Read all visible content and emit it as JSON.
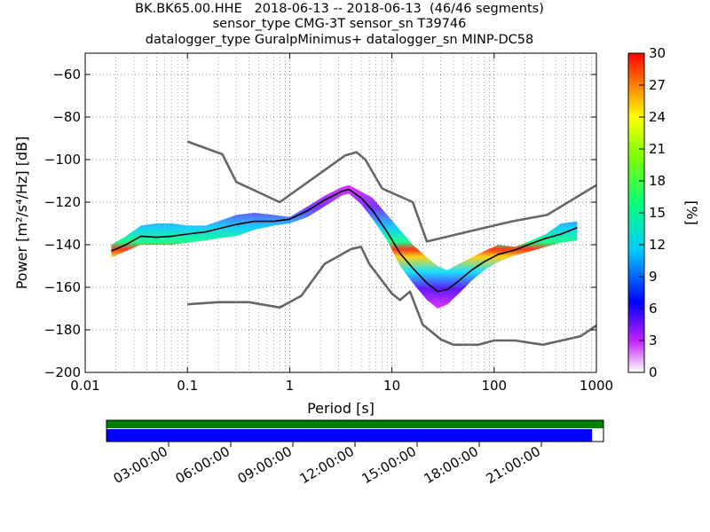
{
  "header": {
    "line1": "BK.BK65.00.HHE   2018-06-13 -- 2018-06-13  (46/46 segments)",
    "line2": "sensor_type CMG-3T sensor_sn T39746",
    "line3": "datalogger_type GuralpMinimus+ datalogger_sn MINP-DC58"
  },
  "chart_data": {
    "type": "heatmap",
    "xlabel": "Period [s]",
    "ylabel": "Power [m²/s⁴/Hz] [dB]",
    "x_scale": "log",
    "xlim": [
      0.01,
      1000
    ],
    "ylim": [
      -200,
      -50
    ],
    "x_ticks": [
      "0.01",
      "0.1",
      "1",
      "10",
      "100",
      "1000"
    ],
    "y_ticks": [
      "−60",
      "−80",
      "−100",
      "−120",
      "−140",
      "−160",
      "−180",
      "−200"
    ],
    "grid": true,
    "colorbar": {
      "label": "[%]",
      "range": [
        0,
        30
      ],
      "ticks": [
        "30",
        "27",
        "24",
        "21",
        "18",
        "15",
        "12",
        "9",
        "6",
        "3",
        "0"
      ]
    },
    "series": [
      {
        "name": "",
        "color": "#666666",
        "x": [
          0.1,
          0.22,
          0.3,
          0.8,
          3.5,
          4.5,
          5.5,
          8,
          16,
          22,
          60,
          150,
          330,
          1000
        ],
        "y": [
          -91.5,
          -97.5,
          -110.5,
          -120,
          -98,
          -96.5,
          -100,
          -113.5,
          -120,
          -138.5,
          -133.5,
          -129,
          -126,
          -112
        ]
      },
      {
        "name": "",
        "color": "#666666",
        "x": [
          0.1,
          0.2,
          0.4,
          0.8,
          1.3,
          2.2,
          4,
          5,
          6,
          10,
          12,
          15,
          20,
          30,
          40,
          70,
          100,
          160,
          300,
          700,
          1000
        ],
        "y": [
          -168,
          -167,
          -167,
          -169.5,
          -164,
          -149,
          -142,
          -141,
          -149,
          -163,
          -166,
          -162,
          -177.5,
          -184.5,
          -187,
          -187,
          -185,
          -185,
          -187,
          -183,
          -178
        ]
      },
      {
        "name": "",
        "color": "#000000",
        "x": [
          0.018,
          0.025,
          0.035,
          0.05,
          0.07,
          0.1,
          0.15,
          0.2,
          0.3,
          0.45,
          0.7,
          1,
          1.5,
          2.2,
          3.2,
          3.8,
          5,
          6.5,
          9,
          12,
          16,
          22,
          28,
          35,
          45,
          60,
          80,
          110,
          160,
          230,
          320,
          450,
          650
        ],
        "y": [
          -143,
          -140,
          -136,
          -136.5,
          -136,
          -135,
          -134,
          -132.5,
          -130.5,
          -129,
          -129,
          -128,
          -124,
          -119,
          -115,
          -114,
          -118,
          -124,
          -134,
          -144,
          -151,
          -158,
          -162,
          -161,
          -157,
          -152,
          -148,
          -144.5,
          -142.5,
          -139.5,
          -137,
          -135,
          -132
        ]
      }
    ],
    "density_band": {
      "x": [
        0.018,
        0.025,
        0.035,
        0.05,
        0.07,
        0.1,
        0.15,
        0.2,
        0.3,
        0.45,
        0.7,
        1,
        1.5,
        2.2,
        3.2,
        3.8,
        5,
        6.5,
        9,
        12,
        16,
        22,
        28,
        35,
        45,
        60,
        80,
        110,
        160,
        230,
        320,
        450,
        650
      ],
      "upper": [
        -140,
        -136,
        -131,
        -130,
        -130,
        -131,
        -131,
        -129,
        -126,
        -125,
        -126,
        -127,
        -122,
        -117,
        -113,
        -112,
        -115,
        -118,
        -126,
        -133,
        -140,
        -146,
        -150,
        -152,
        -149,
        -146,
        -143,
        -140,
        -141,
        -138,
        -135,
        -130,
        -129
      ],
      "lower": [
        -146,
        -143,
        -140,
        -140,
        -140,
        -139,
        -138,
        -137,
        -136,
        -133,
        -131,
        -130,
        -127,
        -122,
        -117,
        -116,
        -121,
        -128,
        -138,
        -150,
        -158,
        -166,
        -170,
        -168,
        -163,
        -157,
        -152,
        -148,
        -145,
        -143,
        -141,
        -139,
        -138
      ]
    },
    "time_axis": {
      "ticks": [
        "03:00:00",
        "06:00:00",
        "09:00:00",
        "12:00:00",
        "15:00:00",
        "18:00:00",
        "21:00:00"
      ],
      "coverage": [
        0,
        0.977
      ]
    }
  }
}
